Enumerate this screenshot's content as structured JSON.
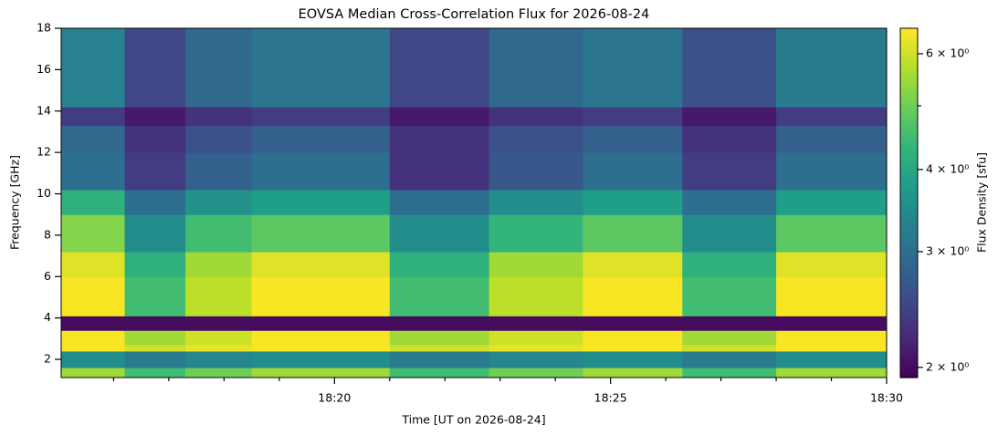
{
  "chart_data": {
    "type": "heatmap",
    "title": "EOVSA Median Cross-Correlation Flux for 2026-08-24",
    "xlabel": "Time [UT on 2026-08-24]",
    "ylabel": "Frequency [GHz]",
    "colorbar_label": "Flux Density [sfu]",
    "colormap": "viridis",
    "color_scale": "log",
    "xlim": [
      15.05,
      30
    ],
    "xticks": [
      {
        "value": 20,
        "label": "18:20"
      },
      {
        "value": 25,
        "label": "18:25"
      },
      {
        "value": 30,
        "label": "18:30"
      }
    ],
    "xminor_ticks": [
      16,
      17,
      18,
      19,
      21,
      22,
      23,
      24,
      26,
      27,
      28,
      29
    ],
    "ylim": [
      1.12,
      18
    ],
    "yticks": [
      2,
      4,
      6,
      8,
      10,
      12,
      14,
      16,
      18
    ],
    "clim": [
      1.93,
      6.56
    ],
    "cticks": [
      {
        "value": 2,
        "label": "2 × 10⁰"
      },
      {
        "value": 3,
        "label": "3 × 10⁰"
      },
      {
        "value": 4,
        "label": "4 × 10⁰"
      },
      {
        "value": 6,
        "label": "6 × 10⁰"
      }
    ],
    "cminor_ticks": [
      5
    ],
    "x_edges": [
      15.05,
      16.2,
      17.3,
      18.5,
      21.0,
      22.8,
      24.5,
      26.3,
      28.0,
      30
    ],
    "y_edges": [
      1.12,
      1.6,
      2.4,
      2.7,
      3.4,
      4.1,
      6.0,
      7.2,
      9.0,
      10.2,
      12.0,
      13.3,
      14.2,
      18
    ],
    "z": [
      [
        5.5,
        4.5,
        5.0,
        5.5,
        4.5,
        5.0,
        5.5,
        4.5,
        5.5
      ],
      [
        3.5,
        3.2,
        3.4,
        3.5,
        3.2,
        3.4,
        3.5,
        3.2,
        3.5
      ],
      [
        6.5,
        6.0,
        6.3,
        6.5,
        6.0,
        6.3,
        6.5,
        6.0,
        6.5
      ],
      [
        6.5,
        5.5,
        6.0,
        6.5,
        5.5,
        6.0,
        6.5,
        5.5,
        6.5
      ],
      [
        2.0,
        2.0,
        2.0,
        2.0,
        2.0,
        2.0,
        2.0,
        2.0,
        2.0
      ],
      [
        6.5,
        4.5,
        5.8,
        6.5,
        4.5,
        5.8,
        6.5,
        4.5,
        6.5
      ],
      [
        6.2,
        4.2,
        5.5,
        6.2,
        4.2,
        5.5,
        6.2,
        4.2,
        6.2
      ],
      [
        5.2,
        3.5,
        4.5,
        4.8,
        3.5,
        4.3,
        4.8,
        3.5,
        4.8
      ],
      [
        4.2,
        3.0,
        3.6,
        3.8,
        3.0,
        3.5,
        3.8,
        3.0,
        3.8
      ],
      [
        3.0,
        2.4,
        2.8,
        3.0,
        2.3,
        2.7,
        3.0,
        2.4,
        3.0
      ],
      [
        2.9,
        2.3,
        2.6,
        2.8,
        2.3,
        2.6,
        2.8,
        2.3,
        2.8
      ],
      [
        2.4,
        2.1,
        2.3,
        2.4,
        2.1,
        2.3,
        2.4,
        2.1,
        2.4
      ],
      [
        3.3,
        2.5,
        2.9,
        3.1,
        2.5,
        2.9,
        3.1,
        2.6,
        3.2
      ]
    ]
  }
}
